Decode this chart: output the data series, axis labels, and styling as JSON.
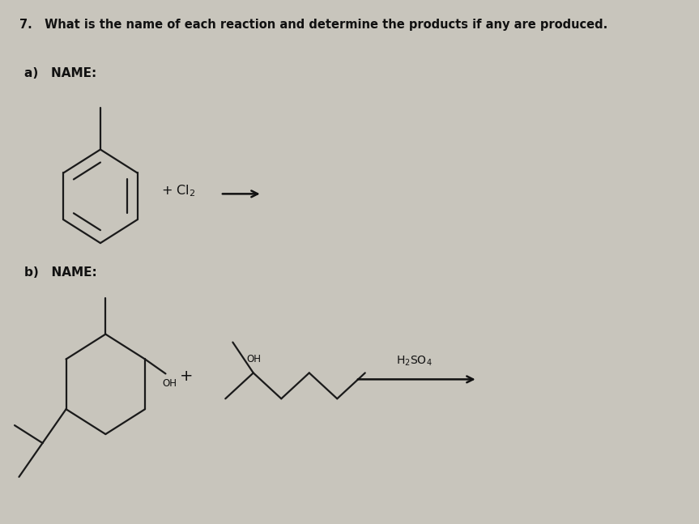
{
  "bg_color": "#c8c5bc",
  "title_text": "7.   What is the name of each reaction and determine the products if any are produced.",
  "title_fontsize": 10.5,
  "label_a_text": "a)   NAME:",
  "label_b_text": "b)   NAME:",
  "label_fontsize": 11,
  "line_color": "#1a1a1a",
  "line_width": 1.6,
  "text_color": "#111111"
}
